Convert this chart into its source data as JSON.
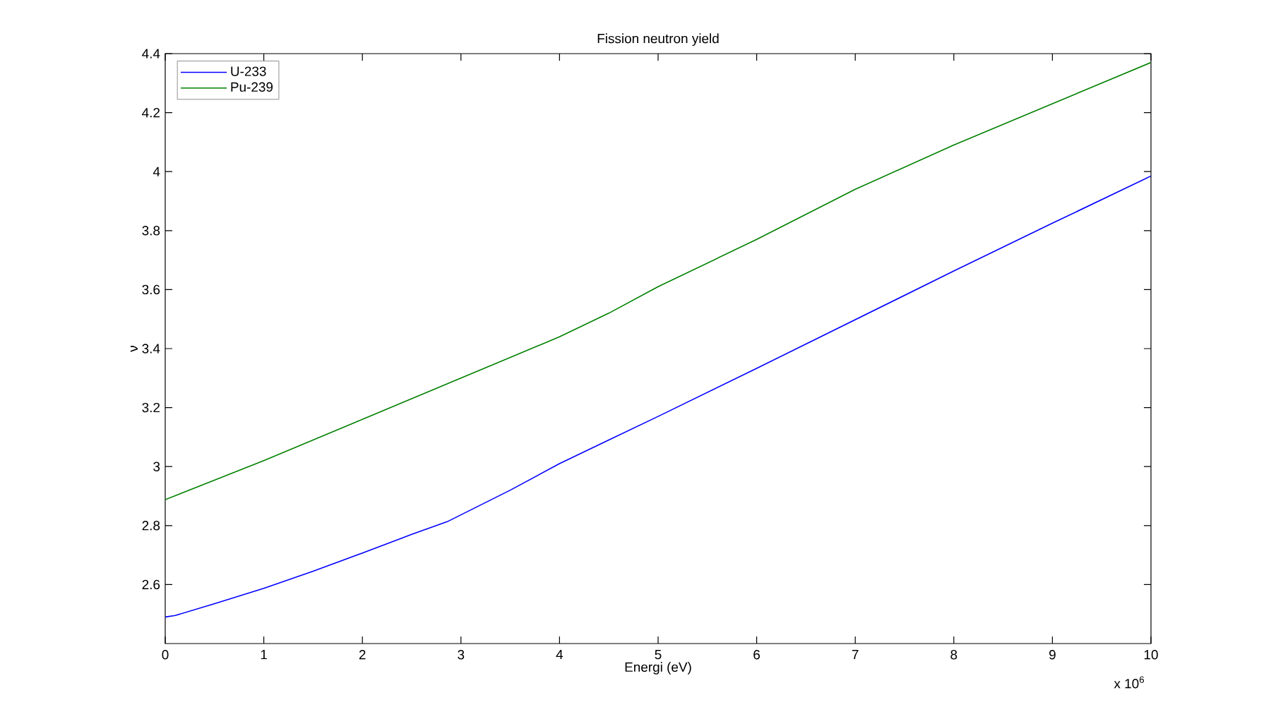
{
  "chart_data": {
    "type": "line",
    "title": "Fission neutron yield",
    "xlabel": "Energi (eV)",
    "ylabel": "ν",
    "annotations": [
      "x 10$^{6}$"
    ],
    "xlim": [
      0,
      10
    ],
    "ylim": [
      2.4,
      4.4
    ],
    "xticks": [
      0,
      1,
      2,
      3,
      4,
      5,
      6,
      7,
      8,
      9,
      10
    ],
    "yticks": [
      2.6,
      2.8,
      3,
      3.2,
      3.4,
      3.6,
      3.8,
      4,
      4.2,
      4.4
    ],
    "legend": "top left",
    "line_style": "solid",
    "series": [
      {
        "name": "U-233",
        "color": "#0000ff",
        "x": [
          0,
          0.1,
          0.5,
          1,
          1.5,
          2,
          2.5,
          2.86,
          3.5,
          4,
          4.5,
          5,
          6,
          7,
          8,
          9,
          10
        ],
        "values": [
          2.49,
          2.495,
          2.535,
          2.587,
          2.645,
          2.707,
          2.77,
          2.813,
          2.92,
          3.01,
          3.09,
          3.17,
          3.333,
          3.498,
          3.663,
          3.825,
          3.985
        ]
      },
      {
        "name": "Pu-239",
        "color": "#008000",
        "x": [
          0,
          1,
          2,
          3,
          4,
          4.5,
          5,
          6,
          7,
          8,
          9,
          10
        ],
        "values": [
          2.888,
          3.02,
          3.16,
          3.3,
          3.44,
          3.52,
          3.61,
          3.77,
          3.94,
          4.09,
          4.23,
          4.37
        ]
      }
    ]
  }
}
